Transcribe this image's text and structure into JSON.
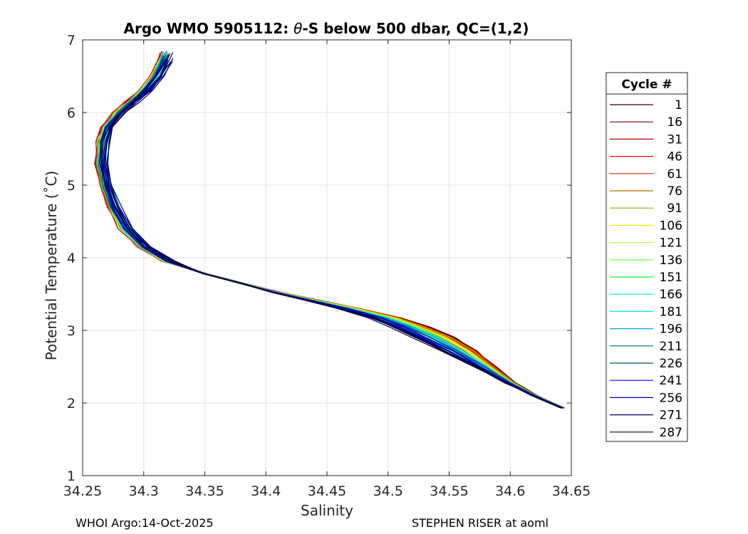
{
  "chart_data": {
    "type": "line",
    "title_prefix": "Argo WMO 5905112: ",
    "title_theta": "θ",
    "title_suffix": "-S below 500 dbar,  QC=(1,2)",
    "xlabel": "Salinity",
    "ylabel": "Potential Temperature (˚C)",
    "xlim": [
      34.25,
      34.65
    ],
    "ylim": [
      1,
      7
    ],
    "xticks": [
      34.25,
      34.3,
      34.35,
      34.4,
      34.45,
      34.5,
      34.55,
      34.6,
      34.65
    ],
    "xtick_labels": [
      "34.25",
      "34.3",
      "34.35",
      "34.4",
      "34.45",
      "34.5",
      "34.55",
      "34.6",
      "34.65"
    ],
    "yticks": [
      1,
      2,
      3,
      4,
      5,
      6,
      7
    ],
    "ytick_labels": [
      "1",
      "2",
      "3",
      "4",
      "5",
      "6",
      "7"
    ],
    "grid": true,
    "legend_title": "Cycle #",
    "legend_location": "outside-right",
    "legend": [
      {
        "label": "1",
        "color": "#3a0000"
      },
      {
        "label": "16",
        "color": "#7a0000"
      },
      {
        "label": "31",
        "color": "#b00000"
      },
      {
        "label": "46",
        "color": "#e60000"
      },
      {
        "label": "61",
        "color": "#ff2a00"
      },
      {
        "label": "76",
        "color": "#c46a00"
      },
      {
        "label": "91",
        "color": "#b0a000"
      },
      {
        "label": "106",
        "color": "#e6e600"
      },
      {
        "label": "121",
        "color": "#b8ff3a"
      },
      {
        "label": "136",
        "color": "#5cff3a"
      },
      {
        "label": "151",
        "color": "#00ff33"
      },
      {
        "label": "166",
        "color": "#00ffa0"
      },
      {
        "label": "181",
        "color": "#00e6e6"
      },
      {
        "label": "196",
        "color": "#00a0ff"
      },
      {
        "label": "211",
        "color": "#005aa0"
      },
      {
        "label": "226",
        "color": "#005a80"
      },
      {
        "label": "241",
        "color": "#0000ff"
      },
      {
        "label": "256",
        "color": "#0000a0"
      },
      {
        "label": "271",
        "color": "#000060"
      },
      {
        "label": "287",
        "color": "#000040"
      }
    ],
    "reference_profile": {
      "salinity": [
        34.643,
        34.62,
        34.6,
        34.58,
        34.56,
        34.54,
        34.52,
        34.5,
        34.47,
        34.44,
        34.41,
        34.38,
        34.35,
        34.32,
        34.3,
        34.285,
        34.275,
        34.268,
        34.265,
        34.266,
        34.27,
        34.28,
        34.29,
        34.3,
        34.31,
        34.318
      ],
      "theta": [
        1.93,
        2.1,
        2.28,
        2.5,
        2.72,
        2.9,
        3.05,
        3.17,
        3.3,
        3.41,
        3.52,
        3.65,
        3.78,
        3.95,
        4.15,
        4.4,
        4.7,
        5.0,
        5.3,
        5.6,
        5.8,
        6.0,
        6.15,
        6.3,
        6.5,
        6.7
      ]
    }
  },
  "footer": {
    "left": "WHOI Argo:14-Oct-2025",
    "right": "STEPHEN RISER at aoml"
  }
}
